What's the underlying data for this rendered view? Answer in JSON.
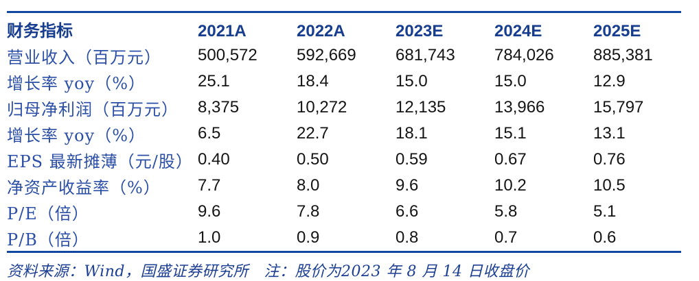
{
  "colors": {
    "rule": "#11479E",
    "header_text": "#173D8F",
    "label_text": "#2B4FA6",
    "value_text": "#141414",
    "footer_text": "#1C3F93",
    "background": "#ffffff"
  },
  "table": {
    "header": {
      "metric_label": "财务指标",
      "years": [
        "2021A",
        "2022A",
        "2023E",
        "2024E",
        "2025E"
      ]
    },
    "rows": [
      {
        "label": "营业收入（百万元）",
        "values": [
          "500,572",
          "592,669",
          "681,743",
          "784,026",
          "885,381"
        ]
      },
      {
        "label": "增长率 yoy（%）",
        "values": [
          "25.1",
          "18.4",
          "15.0",
          "15.0",
          "12.9"
        ]
      },
      {
        "label": "归母净利润（百万元）",
        "values": [
          "8,375",
          "10,272",
          "12,135",
          "13,966",
          "15,797"
        ]
      },
      {
        "label": "增长率 yoy（%）",
        "values": [
          "6.5",
          "22.7",
          "18.1",
          "15.1",
          "13.1"
        ]
      },
      {
        "label": "EPS 最新摊薄（元/股）",
        "values": [
          "0.40",
          "0.50",
          "0.59",
          "0.67",
          "0.76"
        ]
      },
      {
        "label": "净资产收益率（%）",
        "values": [
          "7.7",
          "8.0",
          "9.6",
          "10.2",
          "10.5"
        ]
      },
      {
        "label": "P/E（倍）",
        "values": [
          "9.6",
          "7.8",
          "6.6",
          "5.8",
          "5.1"
        ]
      },
      {
        "label": "P/B（倍）",
        "values": [
          "1.0",
          "0.9",
          "0.8",
          "0.7",
          "0.6"
        ]
      }
    ]
  },
  "footer": {
    "source_note": "资料来源：Wind，国盛证券研究所　注：股价为2023 年 8 月 14 日收盘价"
  }
}
